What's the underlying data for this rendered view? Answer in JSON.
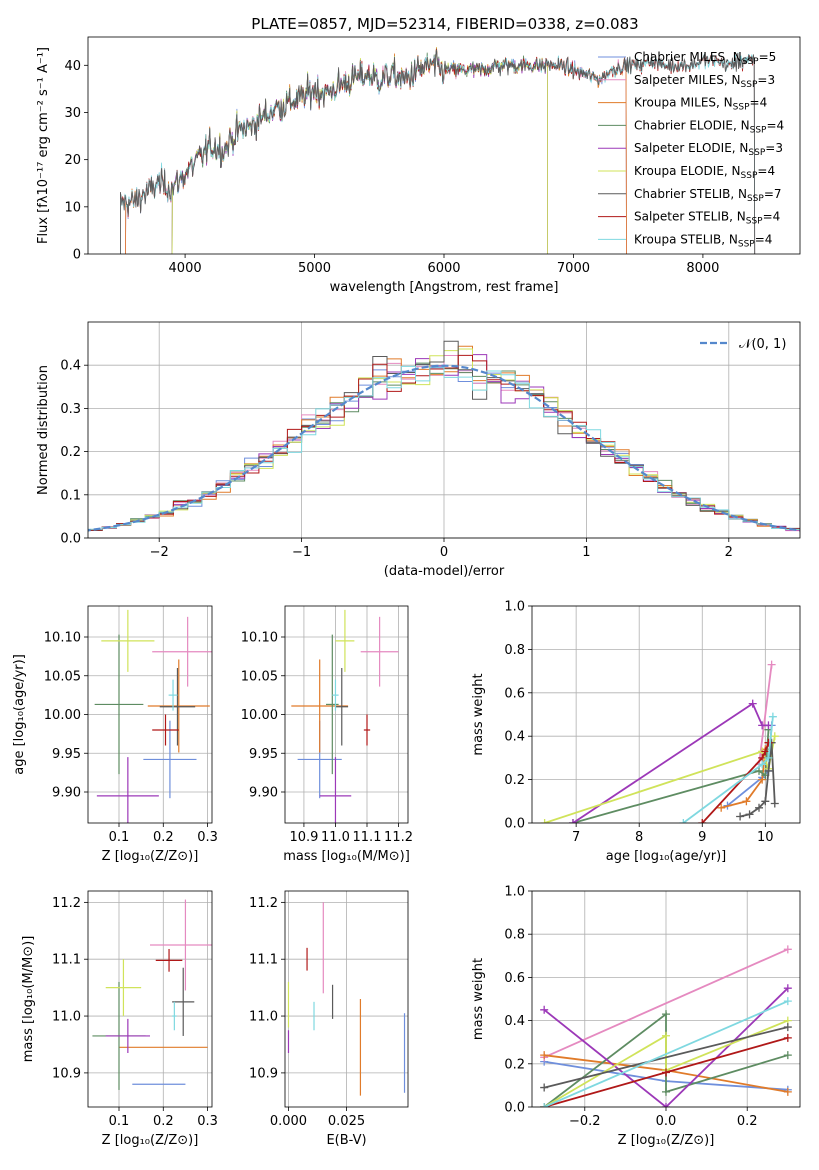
{
  "figure_title": "PLATE=0857, MJD=52314, FIBERID=0338, z=0.083",
  "colors": {
    "Chabrier MILES": "#6f8fdc",
    "Salpeter MILES": "#e58ac0",
    "Kroupa MILES": "#e07b2a",
    "Chabrier ELODIE": "#5e8c62",
    "Salpeter ELODIE": "#9c38b8",
    "Kroupa ELODIE": "#d0e35a",
    "Chabrier STELIB": "#5a5a5a",
    "Salpeter STELIB": "#b01818",
    "Kroupa STELIB": "#7fd8e0"
  },
  "chart_data": [
    {
      "id": "spectrum",
      "type": "line",
      "xlabel": "wavelength [Angstrom, rest frame]",
      "ylabel": "Flux [fλ10⁻¹⁷ erg cm⁻² s⁻¹ A⁻¹]",
      "xlim": [
        3250,
        8750
      ],
      "ylim": [
        0,
        46
      ],
      "xticks": [
        4000,
        5000,
        6000,
        7000,
        8000
      ],
      "yticks": [
        0,
        10,
        20,
        30,
        40
      ],
      "legend_position": "top-right",
      "legend": [
        {
          "label": "Chabrier MILES, N_SSP=5",
          "key": "Chabrier MILES"
        },
        {
          "label": "Salpeter MILES, N_SSP=3",
          "key": "Salpeter MILES"
        },
        {
          "label": "Kroupa MILES, N_SSP=4",
          "key": "Kroupa MILES"
        },
        {
          "label": "Chabrier ELODIE, N_SSP=4",
          "key": "Chabrier ELODIE"
        },
        {
          "label": "Salpeter ELODIE, N_SSP=3",
          "key": "Salpeter ELODIE"
        },
        {
          "label": "Kroupa ELODIE, N_SSP=4",
          "key": "Kroupa ELODIE"
        },
        {
          "label": "Chabrier STELIB, N_SSP=7",
          "key": "Chabrier STELIB"
        },
        {
          "label": "Salpeter STELIB, N_SSP=4",
          "key": "Salpeter STELIB"
        },
        {
          "label": "Kroupa STELIB, N_SSP=4",
          "key": "Kroupa STELIB"
        }
      ],
      "continuum": [
        [
          3500,
          11
        ],
        [
          3600,
          11
        ],
        [
          3700,
          13
        ],
        [
          3800,
          15
        ],
        [
          3900,
          14
        ],
        [
          4000,
          17
        ],
        [
          4100,
          20
        ],
        [
          4200,
          23
        ],
        [
          4300,
          22
        ],
        [
          4400,
          26
        ],
        [
          4500,
          27
        ],
        [
          4600,
          29
        ],
        [
          4700,
          31
        ],
        [
          4800,
          32
        ],
        [
          4900,
          33
        ],
        [
          5000,
          35
        ],
        [
          5100,
          34
        ],
        [
          5200,
          36
        ],
        [
          5300,
          37
        ],
        [
          5400,
          38
        ],
        [
          5500,
          37
        ],
        [
          5600,
          38
        ],
        [
          5700,
          37
        ],
        [
          5800,
          39
        ],
        [
          5900,
          40
        ],
        [
          6000,
          39
        ],
        [
          6100,
          39
        ],
        [
          6200,
          39
        ],
        [
          6300,
          39
        ],
        [
          6400,
          40
        ],
        [
          6500,
          40
        ],
        [
          6600,
          40
        ],
        [
          6700,
          40
        ],
        [
          6800,
          40
        ],
        [
          6900,
          40
        ],
        [
          7000,
          39
        ],
        [
          7100,
          38
        ],
        [
          7200,
          37
        ],
        [
          7300,
          39
        ],
        [
          7400,
          40
        ],
        [
          7500,
          40
        ],
        [
          7600,
          41
        ],
        [
          7700,
          40
        ],
        [
          7800,
          40
        ],
        [
          7900,
          40
        ],
        [
          8000,
          41
        ],
        [
          8100,
          41
        ],
        [
          8200,
          40
        ],
        [
          8300,
          41
        ],
        [
          8400,
          41
        ]
      ],
      "model_ranges": {
        "Chabrier MILES": [
          3540,
          7410
        ],
        "Salpeter MILES": [
          3540,
          7410
        ],
        "Kroupa MILES": [
          3540,
          7410
        ],
        "Chabrier ELODIE": [
          3900,
          6800
        ],
        "Salpeter ELODIE": [
          3900,
          6800
        ],
        "Kroupa ELODIE": [
          3900,
          6800
        ],
        "Chabrier STELIB": [
          3500,
          8400
        ],
        "Salpeter STELIB": [
          3500,
          8400
        ],
        "Kroupa STELIB": [
          3500,
          8400
        ]
      }
    },
    {
      "id": "residuals",
      "type": "histogram",
      "xlabel": "(data-model)/error",
      "ylabel": "Normed distribution",
      "xlim": [
        -2.5,
        2.5
      ],
      "ylim": [
        0,
        0.5
      ],
      "xticks": [
        -2,
        -1,
        0,
        1,
        2
      ],
      "yticks": [
        0,
        0.1,
        0.2,
        0.3,
        0.4
      ],
      "grid": true,
      "legend": [
        {
          "label": "𝒩(0, 1)",
          "style": "dashed",
          "color": "#5588cc"
        }
      ],
      "bin_width": 0.1
    },
    {
      "id": "age_vs_Z",
      "type": "errorbar",
      "xlabel": "Z [log₁₀(Z/Z⊙)]",
      "ylabel": "age  [log₁₀(age/yr)]",
      "xlim": [
        0.03,
        0.31
      ],
      "ylim": [
        9.86,
        10.14
      ],
      "xticks": [
        0.1,
        0.2,
        0.3
      ],
      "yticks": [
        9.9,
        9.95,
        10.0,
        10.05,
        10.1
      ],
      "points": [
        {
          "key": "Chabrier MILES",
          "x": 0.215,
          "xerr": 0.06,
          "y": 9.942,
          "yerr": 0.05
        },
        {
          "key": "Salpeter MILES",
          "x": 0.255,
          "xerr": 0.08,
          "y": 10.081,
          "yerr": 0.045
        },
        {
          "key": "Kroupa MILES",
          "x": 0.235,
          "xerr": 0.07,
          "y": 10.011,
          "yerr": 0.06
        },
        {
          "key": "Chabrier ELODIE",
          "x": 0.1,
          "xerr": 0.055,
          "y": 10.013,
          "yerr": 0.09
        },
        {
          "key": "Salpeter ELODIE",
          "x": 0.12,
          "xerr": 0.07,
          "y": 9.895,
          "yerr": 0.05
        },
        {
          "key": "Kroupa ELODIE",
          "x": 0.12,
          "xerr": 0.06,
          "y": 10.095,
          "yerr": 0.04
        },
        {
          "key": "Chabrier STELIB",
          "x": 0.232,
          "xerr": 0.04,
          "y": 10.01,
          "yerr": 0.05
        },
        {
          "key": "Salpeter STELIB",
          "x": 0.205,
          "xerr": 0.03,
          "y": 9.98,
          "yerr": 0.02
        },
        {
          "key": "Kroupa STELIB",
          "x": 0.222,
          "xerr": 0.01,
          "y": 10.025,
          "yerr": 0.02
        }
      ]
    },
    {
      "id": "age_vs_mass",
      "type": "errorbar",
      "xlabel": "mass [log₁₀(M/M⊙)]",
      "xlim": [
        10.84,
        11.23
      ],
      "ylim": [
        9.86,
        10.14
      ],
      "xticks": [
        10.9,
        11.0,
        11.1,
        11.2
      ],
      "yticks": [
        9.9,
        9.95,
        10.0,
        10.05,
        10.1
      ],
      "points": [
        {
          "key": "Chabrier MILES",
          "x": 10.95,
          "xerr": 0.07,
          "y": 9.942,
          "yerr": 0.05
        },
        {
          "key": "Salpeter MILES",
          "x": 11.14,
          "xerr": 0.06,
          "y": 10.081,
          "yerr": 0.045
        },
        {
          "key": "Kroupa MILES",
          "x": 10.95,
          "xerr": 0.09,
          "y": 10.011,
          "yerr": 0.06
        },
        {
          "key": "Chabrier ELODIE",
          "x": 10.99,
          "xerr": 0.02,
          "y": 10.013,
          "yerr": 0.09
        },
        {
          "key": "Salpeter ELODIE",
          "x": 11.0,
          "xerr": 0.05,
          "y": 9.895,
          "yerr": 0.05
        },
        {
          "key": "Kroupa ELODIE",
          "x": 11.03,
          "xerr": 0.03,
          "y": 10.095,
          "yerr": 0.04
        },
        {
          "key": "Chabrier STELIB",
          "x": 11.02,
          "xerr": 0.02,
          "y": 10.01,
          "yerr": 0.05
        },
        {
          "key": "Salpeter STELIB",
          "x": 11.1,
          "xerr": 0.01,
          "y": 9.98,
          "yerr": 0.02
        },
        {
          "key": "Kroupa STELIB",
          "x": 11.0,
          "xerr": 0.01,
          "y": 10.025,
          "yerr": 0.02
        }
      ]
    },
    {
      "id": "weight_vs_age",
      "type": "line",
      "xlabel": "age  [log₁₀(age/yr)]",
      "ylabel": "mass weight",
      "xlim": [
        6.3,
        10.55
      ],
      "ylim": [
        0,
        1.0
      ],
      "xticks": [
        7,
        8,
        9,
        10
      ],
      "yticks": [
        0,
        0.2,
        0.4,
        0.6,
        0.8,
        1.0
      ],
      "grid": true,
      "series": [
        {
          "key": "Chabrier MILES",
          "x": [
            9.4,
            9.95,
            10.05,
            10.1
          ],
          "y": [
            0.08,
            0.21,
            0.24,
            0.45
          ]
        },
        {
          "key": "Salpeter MILES",
          "x": [
            9.9,
            10.1
          ],
          "y": [
            0.27,
            0.73
          ]
        },
        {
          "key": "Kroupa MILES",
          "x": [
            9.3,
            9.7,
            9.95,
            10.0
          ],
          "y": [
            0.07,
            0.1,
            0.2,
            0.34
          ]
        },
        {
          "key": "Chabrier ELODIE",
          "x": [
            6.95,
            9.9,
            10.0,
            10.05
          ],
          "y": [
            0.0,
            0.24,
            0.22,
            0.43
          ]
        },
        {
          "key": "Salpeter ELODIE",
          "x": [
            6.95,
            9.8,
            9.95,
            10.05
          ],
          "y": [
            0.0,
            0.55,
            0.45,
            0.45
          ]
        },
        {
          "key": "Kroupa ELODIE",
          "x": [
            6.5,
            9.95,
            10.05,
            10.15
          ],
          "y": [
            0.0,
            0.33,
            0.25,
            0.4
          ]
        },
        {
          "key": "Chabrier STELIB",
          "x": [
            9.6,
            9.75,
            9.9,
            10.0,
            10.05,
            10.1,
            10.15
          ],
          "y": [
            0.03,
            0.04,
            0.07,
            0.1,
            0.24,
            0.37,
            0.09
          ]
        },
        {
          "key": "Salpeter STELIB",
          "x": [
            9.0,
            9.95,
            10.0,
            10.05
          ],
          "y": [
            0.0,
            0.3,
            0.33,
            0.37
          ]
        },
        {
          "key": "Kroupa STELIB",
          "x": [
            8.7,
            9.95,
            10.05,
            10.12
          ],
          "y": [
            0.0,
            0.27,
            0.3,
            0.49
          ]
        }
      ]
    },
    {
      "id": "mass_vs_Z",
      "type": "errorbar",
      "xlabel": "Z [log₁₀(Z/Z⊙)]",
      "ylabel": "mass [log₁₀(M/M⊙)]",
      "xlim": [
        0.03,
        0.31
      ],
      "ylim": [
        10.84,
        11.22
      ],
      "xticks": [
        0.1,
        0.2,
        0.3
      ],
      "yticks": [
        10.9,
        11.0,
        11.1,
        11.2
      ],
      "points": [
        {
          "key": "Chabrier MILES",
          "x": 0.19,
          "xerr": 0.06,
          "y": 10.88,
          "yerr": 0.0
        },
        {
          "key": "Salpeter MILES",
          "x": 0.25,
          "xerr": 0.08,
          "y": 11.125,
          "yerr": 0.08
        },
        {
          "key": "Kroupa MILES",
          "x": 0.2,
          "xerr": 0.1,
          "y": 10.945,
          "yerr": 0.0
        },
        {
          "key": "Chabrier ELODIE",
          "x": 0.1,
          "xerr": 0.06,
          "y": 10.965,
          "yerr": 0.095
        },
        {
          "key": "Salpeter ELODIE",
          "x": 0.12,
          "xerr": 0.05,
          "y": 10.965,
          "yerr": 0.03
        },
        {
          "key": "Kroupa ELODIE",
          "x": 0.11,
          "xerr": 0.04,
          "y": 11.05,
          "yerr": 0.05
        },
        {
          "key": "Chabrier STELIB",
          "x": 0.245,
          "xerr": 0.025,
          "y": 11.025,
          "yerr": 0.06
        },
        {
          "key": "Salpeter STELIB",
          "x": 0.213,
          "xerr": 0.03,
          "y": 11.098,
          "yerr": 0.02
        },
        {
          "key": "Kroupa STELIB",
          "x": 0.225,
          "xerr": 0.005,
          "y": 11.0,
          "yerr": 0.025
        }
      ]
    },
    {
      "id": "mass_vs_ebv",
      "type": "errorbar",
      "xlabel": "E(B-V)",
      "xlim": [
        -0.0015,
        0.0515
      ],
      "ylim": [
        10.84,
        11.22
      ],
      "xticks": [
        0.0,
        0.025
      ],
      "yticks": [
        10.9,
        11.0,
        11.1,
        11.2
      ],
      "points": [
        {
          "key": "Chabrier MILES",
          "x": 0.05,
          "y": 10.935,
          "yerr": 0.07
        },
        {
          "key": "Salpeter MILES",
          "x": 0.015,
          "y": 11.12,
          "yerr": 0.08
        },
        {
          "key": "Kroupa MILES",
          "x": 0.031,
          "y": 10.945,
          "yerr": 0.085
        },
        {
          "key": "Salpeter ELODIE",
          "x": 0.0,
          "y": 10.955,
          "yerr": 0.02
        },
        {
          "key": "Kroupa ELODIE",
          "x": 0.0,
          "y": 11.02,
          "yerr": 0.04
        },
        {
          "key": "Chabrier STELIB",
          "x": 0.019,
          "y": 11.025,
          "yerr": 0.03
        },
        {
          "key": "Salpeter STELIB",
          "x": 0.008,
          "y": 11.1,
          "yerr": 0.02
        },
        {
          "key": "Kroupa STELIB",
          "x": 0.011,
          "y": 11.0,
          "yerr": 0.025
        }
      ]
    },
    {
      "id": "weight_vs_Z",
      "type": "line",
      "xlabel": "Z [log₁₀(Z/Z⊙)]",
      "ylabel": "mass weight",
      "xlim": [
        -0.33,
        0.33
      ],
      "ylim": [
        0,
        1.0
      ],
      "xticks": [
        -0.2,
        0.0,
        0.2
      ],
      "yticks": [
        0,
        0.2,
        0.4,
        0.6,
        0.8,
        1.0
      ],
      "grid": true,
      "series": [
        {
          "key": "Chabrier MILES",
          "x": [
            -0.3,
            0.0,
            0.3
          ],
          "y": [
            0.21,
            0.12,
            0.08
          ]
        },
        {
          "key": "Salpeter MILES",
          "x": [
            -0.3,
            0.3
          ],
          "y": [
            0.23,
            0.73
          ]
        },
        {
          "key": "Kroupa MILES",
          "x": [
            -0.3,
            0.0,
            0.3
          ],
          "y": [
            0.24,
            0.17,
            0.07
          ]
        },
        {
          "key": "Chabrier ELODIE",
          "x": [
            -0.3,
            0.0,
            0.0,
            0.3
          ],
          "y": [
            0.0,
            0.43,
            0.07,
            0.24
          ]
        },
        {
          "key": "Salpeter ELODIE",
          "x": [
            -0.3,
            0.0,
            0.3
          ],
          "y": [
            0.45,
            0.0,
            0.55
          ]
        },
        {
          "key": "Kroupa ELODIE",
          "x": [
            -0.3,
            0.0,
            0.0,
            0.3
          ],
          "y": [
            0.0,
            0.33,
            0.17,
            0.4
          ]
        },
        {
          "key": "Chabrier STELIB",
          "x": [
            -0.3,
            0.3
          ],
          "y": [
            0.09,
            0.37
          ]
        },
        {
          "key": "Salpeter STELIB",
          "x": [
            -0.3,
            0.0,
            0.3
          ],
          "y": [
            0.0,
            0.16,
            0.32
          ]
        },
        {
          "key": "Kroupa STELIB",
          "x": [
            -0.3,
            0.3
          ],
          "y": [
            0.0,
            0.49
          ]
        }
      ]
    }
  ]
}
